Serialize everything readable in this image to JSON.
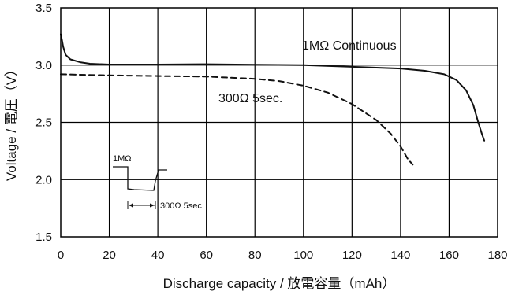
{
  "chart_data": {
    "type": "line",
    "xlabel": "Discharge capacity / 放電容量（mAh）",
    "ylabel": "Voltage / 電圧（V）",
    "xlim": [
      0,
      180
    ],
    "ylim": [
      1.5,
      3.5
    ],
    "x_ticks": [
      "0",
      "20",
      "40",
      "60",
      "80",
      "100",
      "120",
      "140",
      "160",
      "180"
    ],
    "y_ticks": [
      "1.5",
      "2.0",
      "2.5",
      "3.0",
      "3.5"
    ],
    "grid": true,
    "series": [
      {
        "name": "1MΩ Continuous",
        "style": "solid",
        "points": [
          [
            0,
            3.27
          ],
          [
            0.5,
            3.22
          ],
          [
            1,
            3.16
          ],
          [
            2,
            3.09
          ],
          [
            4,
            3.05
          ],
          [
            8,
            3.025
          ],
          [
            12,
            3.012
          ],
          [
            20,
            3.005
          ],
          [
            40,
            3.005
          ],
          [
            60,
            3.008
          ],
          [
            80,
            3.003
          ],
          [
            100,
            3.0
          ],
          [
            120,
            2.985
          ],
          [
            140,
            2.97
          ],
          [
            150,
            2.95
          ],
          [
            158,
            2.92
          ],
          [
            163,
            2.87
          ],
          [
            167,
            2.78
          ],
          [
            170,
            2.65
          ],
          [
            172,
            2.5
          ],
          [
            173.5,
            2.4
          ],
          [
            174.5,
            2.34
          ]
        ]
      },
      {
        "name": "300Ω 5sec.",
        "style": "dashed",
        "points": [
          [
            0,
            2.92
          ],
          [
            20,
            2.91
          ],
          [
            40,
            2.905
          ],
          [
            60,
            2.9
          ],
          [
            80,
            2.88
          ],
          [
            90,
            2.86
          ],
          [
            100,
            2.82
          ],
          [
            110,
            2.76
          ],
          [
            120,
            2.66
          ],
          [
            130,
            2.52
          ],
          [
            136,
            2.4
          ],
          [
            140,
            2.29
          ],
          [
            143,
            2.18
          ],
          [
            145,
            2.13
          ]
        ]
      }
    ],
    "annotations": {
      "continuous_label": "1MΩ Continuous",
      "pulse_label": "300Ω 5sec.",
      "inset": {
        "top_label": "1MΩ",
        "bottom_label": "300Ω 5sec."
      }
    }
  }
}
